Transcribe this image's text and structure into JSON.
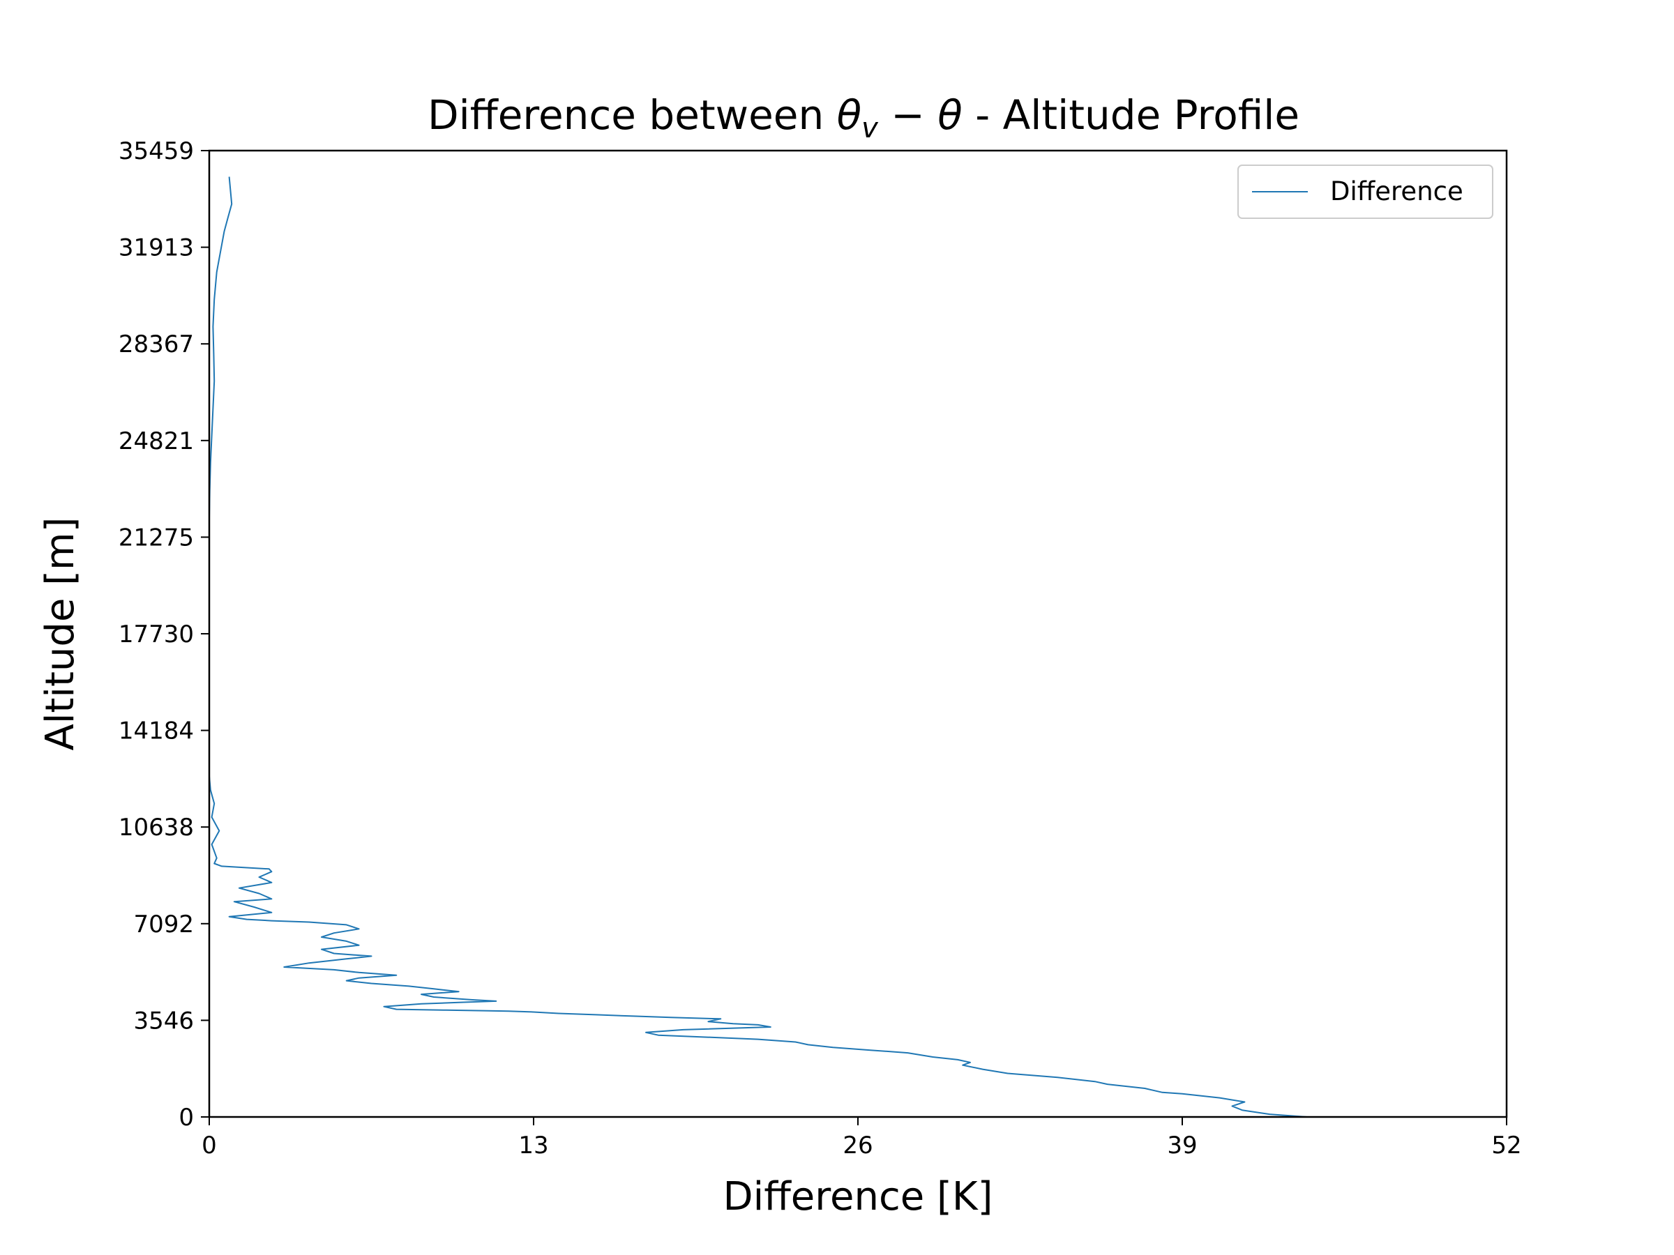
{
  "chart_data": {
    "type": "line",
    "title": "Difference between θv − θ - Altitude Profile",
    "title_parts": {
      "prefix": "Difference between ",
      "sym": "θ",
      "sub": "v",
      "minus": " − ",
      "sym2": "θ",
      "suffix": " - Altitude Profile"
    },
    "xlabel": "Difference [K]",
    "ylabel": "Altitude [m]",
    "xlim": [
      0,
      52
    ],
    "ylim": [
      0,
      35459
    ],
    "xticks": [
      "0",
      "13",
      "26",
      "39",
      "52"
    ],
    "yticks": [
      "0",
      "3546",
      "7092",
      "10638",
      "14184",
      "17730",
      "21275",
      "24821",
      "28367",
      "31913",
      "35459"
    ],
    "legend": {
      "position": "top-right",
      "entries": [
        "Difference"
      ]
    },
    "grid": false,
    "colors": {
      "line": "#1f77b4",
      "axes": "#000000",
      "legend_border": "#cccccc"
    },
    "series": [
      {
        "name": "Difference",
        "x": [
          44.0,
          42.5,
          41.4,
          41.0,
          41.5,
          40.5,
          39.0,
          38.2,
          37.5,
          36.0,
          35.5,
          34.0,
          32.0,
          31.0,
          30.2,
          30.5,
          30.0,
          29.0,
          28.0,
          26.5,
          25.0,
          24.0,
          23.5,
          22.0,
          18.0,
          17.5,
          19.0,
          22.5,
          22.0,
          21.0,
          20.0,
          20.5,
          18.5,
          17.0,
          15.5,
          14.0,
          13.0,
          12.0,
          11.0,
          9.5,
          7.5,
          7.0,
          8.5,
          10.0,
          11.5,
          10.5,
          9.0,
          8.5,
          10.0,
          9.0,
          8.0,
          6.5,
          5.5,
          6.0,
          7.5,
          6.0,
          5.0,
          3.0,
          4.0,
          5.5,
          6.5,
          5.0,
          4.5,
          6.0,
          5.5,
          4.5,
          5.0,
          6.0,
          5.5,
          4.0,
          2.5,
          1.5,
          0.8,
          2.5,
          1.8,
          1.0,
          2.5,
          2.0,
          1.2,
          2.5,
          2.0,
          2.5,
          2.4,
          0.5,
          0.2,
          0.3,
          0.1,
          0.4,
          0.1,
          0.2,
          0.05,
          0.0,
          0.0,
          0.0,
          0.0,
          0.02,
          0.05,
          0.1,
          0.15,
          0.2,
          0.18,
          0.15,
          0.2,
          0.3,
          0.4,
          0.5,
          0.6,
          0.75,
          0.9,
          0.85,
          0.8
        ],
        "y": [
          0,
          100,
          250,
          400,
          550,
          700,
          850,
          900,
          1050,
          1200,
          1300,
          1450,
          1600,
          1750,
          1900,
          2000,
          2100,
          2200,
          2350,
          2450,
          2550,
          2650,
          2750,
          2850,
          3000,
          3100,
          3200,
          3300,
          3380,
          3420,
          3500,
          3600,
          3650,
          3700,
          3750,
          3800,
          3850,
          3880,
          3900,
          3920,
          3950,
          4050,
          4150,
          4200,
          4250,
          4300,
          4400,
          4500,
          4600,
          4700,
          4800,
          4900,
          5000,
          5100,
          5200,
          5300,
          5400,
          5500,
          5650,
          5800,
          5900,
          6000,
          6150,
          6300,
          6450,
          6600,
          6750,
          6900,
          7050,
          7150,
          7200,
          7250,
          7350,
          7500,
          7700,
          7900,
          8000,
          8200,
          8400,
          8600,
          8800,
          9000,
          9100,
          9200,
          9300,
          9500,
          10000,
          10500,
          11000,
          11500,
          12000,
          12500,
          13000,
          14000,
          22000,
          23000,
          24000,
          25000,
          26000,
          27000,
          28000,
          29000,
          30000,
          31000,
          31500,
          32000,
          32500,
          33000,
          33500,
          34000,
          34500
        ]
      }
    ]
  }
}
